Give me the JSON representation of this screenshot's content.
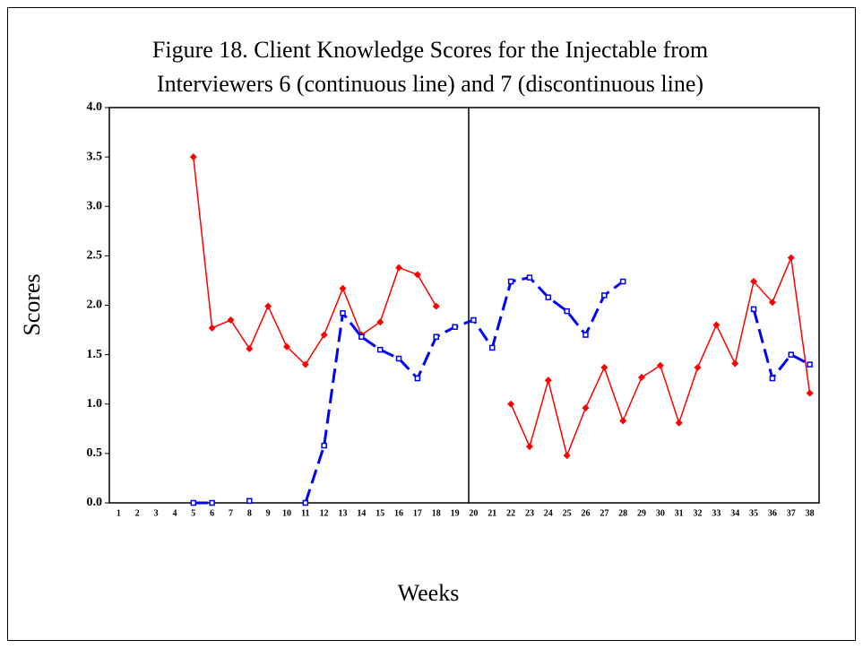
{
  "chart_data": {
    "type": "line",
    "title": [
      "Figure 18. Client Knowledge Scores for the Injectable from",
      "Interviewers 6 (continuous line) and 7 (discontinuous line)"
    ],
    "xlabel": "Weeks",
    "ylabel": "Scores",
    "categories": [
      1,
      2,
      3,
      4,
      5,
      6,
      7,
      8,
      9,
      10,
      11,
      12,
      13,
      14,
      15,
      16,
      17,
      18,
      19,
      20,
      21,
      22,
      23,
      24,
      25,
      26,
      27,
      28,
      29,
      30,
      31,
      32,
      33,
      34,
      35,
      36,
      37,
      38
    ],
    "series": [
      {
        "color": "#ff0000",
        "style": "solid",
        "marker": "diamond",
        "values": [
          null,
          null,
          null,
          null,
          3.5,
          1.77,
          1.85,
          1.56,
          1.99,
          1.58,
          1.4,
          1.7,
          2.17,
          1.7,
          1.83,
          2.38,
          2.31,
          1.99,
          null,
          null,
          null,
          1.0,
          0.57,
          1.24,
          0.48,
          0.96,
          1.37,
          0.83,
          1.27,
          1.39,
          0.81,
          1.37,
          1.8,
          1.41,
          2.24,
          2.03,
          2.48,
          1.11
        ]
      },
      {
        "color": "#0000ff",
        "style": "dashed",
        "marker": "square",
        "values": [
          null,
          null,
          null,
          null,
          0.0,
          0.0,
          null,
          0.02,
          null,
          null,
          0.0,
          0.58,
          1.92,
          1.68,
          1.55,
          1.46,
          1.26,
          1.68,
          1.78,
          1.85,
          1.57,
          2.24,
          2.28,
          2.08,
          1.94,
          1.7,
          2.1,
          2.24,
          null,
          null,
          null,
          null,
          null,
          null,
          1.96,
          1.26,
          1.5,
          1.4
        ]
      }
    ],
    "ylim": [
      0,
      4
    ],
    "yticks": [
      {
        "value": 0,
        "label": "0.0"
      },
      {
        "value": 0.5,
        "label": "0.5"
      },
      {
        "value": 1,
        "label": "1.0"
      },
      {
        "value": 1.5,
        "label": "1.5"
      },
      {
        "value": 2,
        "label": "2.0"
      },
      {
        "value": 2.5,
        "label": "2.5"
      },
      {
        "value": 3,
        "label": "3.0"
      },
      {
        "value": 3.5,
        "label": "3.5"
      },
      {
        "value": 4,
        "label": "4.0"
      }
    ]
  }
}
